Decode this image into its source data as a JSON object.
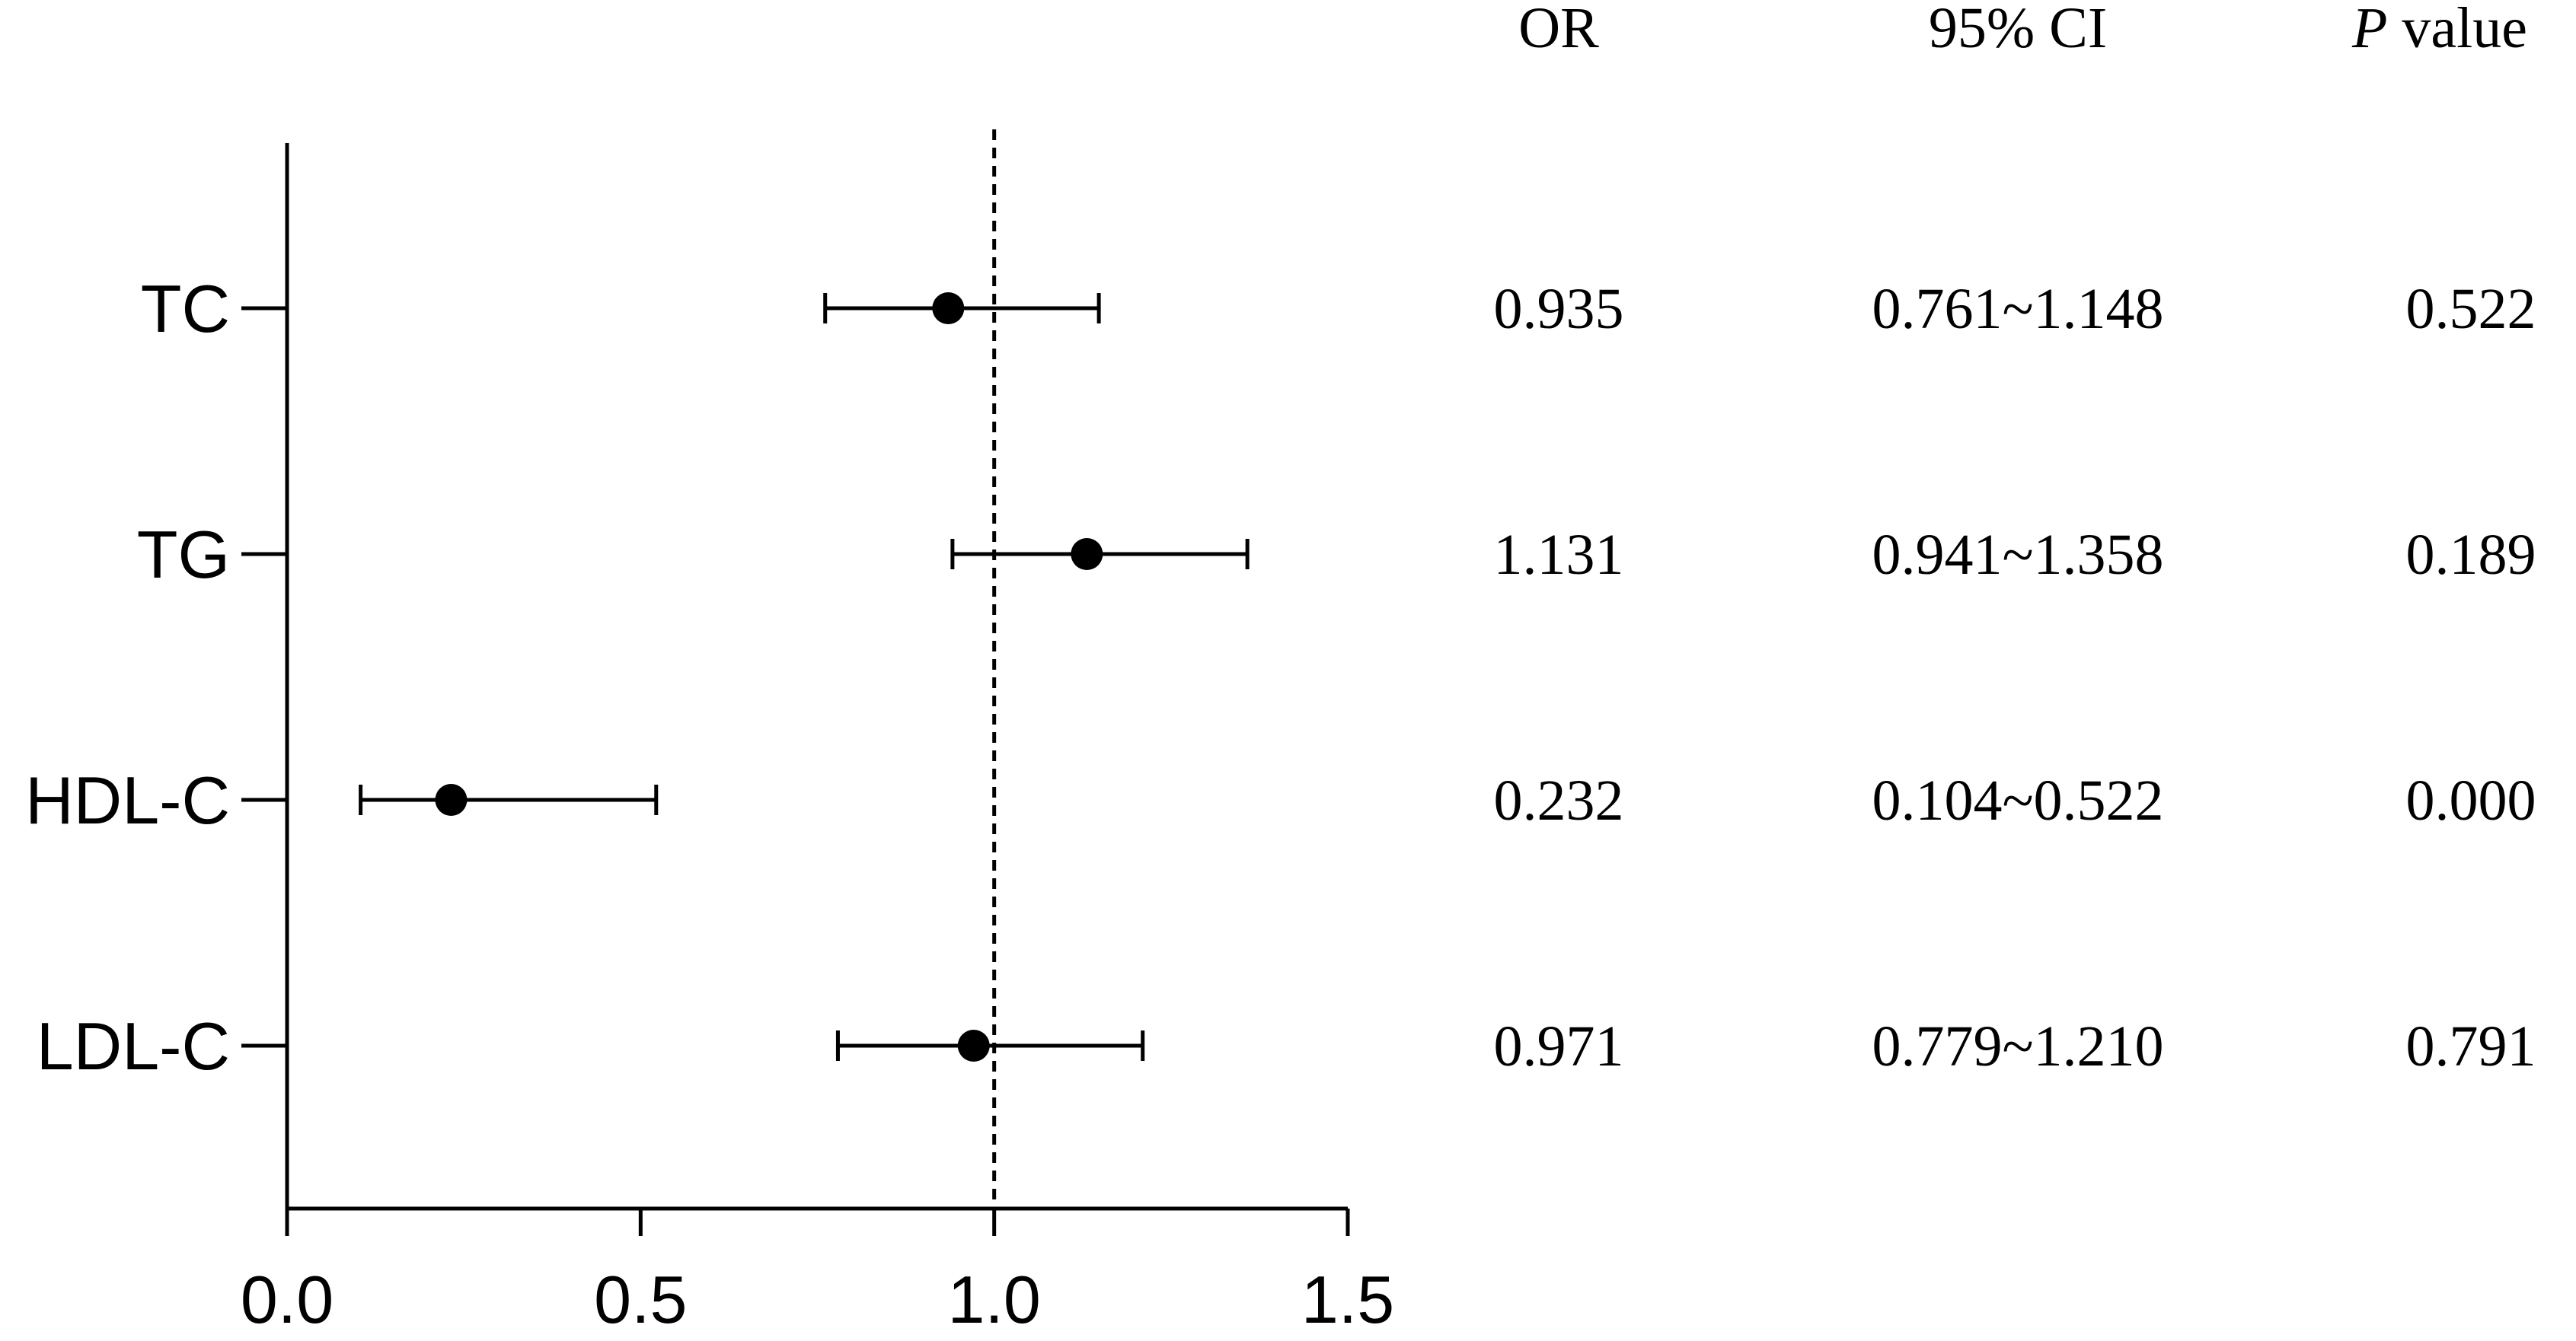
{
  "chart_data": {
    "type": "forest",
    "title": "",
    "xlabel": "",
    "ylabel": "",
    "xlim": [
      0.0,
      1.5
    ],
    "x_ticks": [
      "0.0",
      "0.5",
      "1.0",
      "1.5"
    ],
    "x_tick_values": [
      0.0,
      0.5,
      1.0,
      1.5
    ],
    "reference_line": 1.0,
    "grid": false,
    "categories": [
      "TC",
      "TG",
      "HDL-C",
      "LDL-C"
    ],
    "series": [
      {
        "values": [
          0.935,
          1.131,
          0.232,
          0.971
        ],
        "ci_low": [
          0.761,
          0.941,
          0.104,
          0.779
        ],
        "ci_high": [
          1.148,
          1.358,
          0.522,
          1.21
        ]
      }
    ],
    "table": {
      "headers": {
        "or": "OR",
        "ci": "95% CI",
        "p_italic": "P",
        "p_rest": " value"
      },
      "rows": [
        {
          "or": "0.935",
          "ci": "0.761~1.148",
          "p": "0.522"
        },
        {
          "or": "1.131",
          "ci": "0.941~1.358",
          "p": "0.189"
        },
        {
          "or": "0.232",
          "ci": "0.104~0.522",
          "p": "0.000"
        },
        {
          "or": "0.971",
          "ci": "0.779~1.210",
          "p": "0.791"
        }
      ]
    }
  }
}
